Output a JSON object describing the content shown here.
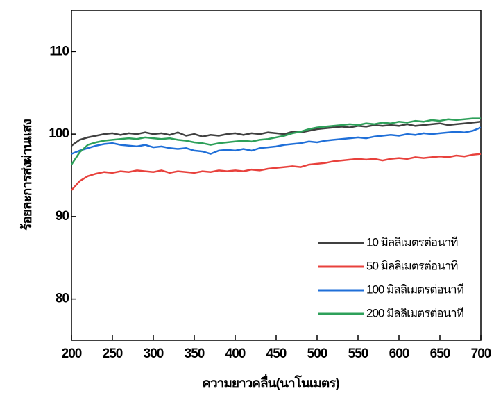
{
  "chart_data": {
    "type": "line",
    "x_label": "ความยาวคลื่น(นาโนเมตร)",
    "y_label": "ร้อยละการส่งผ่านแสง",
    "x": [
      200,
      210,
      220,
      230,
      240,
      250,
      260,
      270,
      280,
      290,
      300,
      310,
      320,
      330,
      340,
      350,
      360,
      370,
      380,
      390,
      400,
      410,
      420,
      430,
      440,
      450,
      460,
      470,
      480,
      490,
      500,
      510,
      520,
      530,
      540,
      550,
      560,
      570,
      580,
      590,
      600,
      610,
      620,
      630,
      640,
      650,
      660,
      670,
      680,
      690,
      700
    ],
    "series": [
      {
        "name": "10 มิลลิเมตรต่อนาที",
        "color": "#404040",
        "values": [
          98.6,
          99.3,
          99.6,
          99.8,
          100.0,
          100.1,
          99.9,
          100.1,
          100.0,
          100.2,
          100.0,
          100.1,
          99.9,
          100.2,
          99.8,
          100.0,
          99.7,
          99.9,
          99.8,
          100.0,
          100.1,
          99.9,
          100.1,
          100.0,
          100.2,
          100.1,
          100.0,
          100.3,
          100.2,
          100.4,
          100.6,
          100.7,
          100.8,
          100.9,
          100.8,
          101.0,
          100.9,
          101.1,
          101.0,
          101.1,
          101.0,
          101.2,
          101.0,
          101.1,
          101.2,
          101.3,
          101.1,
          101.2,
          101.3,
          101.4,
          101.5
        ]
      },
      {
        "name": "50 มิลลิเมตรต่อนาที",
        "color": "#e8413c",
        "values": [
          93.2,
          94.3,
          94.9,
          95.2,
          95.4,
          95.3,
          95.5,
          95.4,
          95.6,
          95.5,
          95.4,
          95.6,
          95.3,
          95.5,
          95.4,
          95.3,
          95.5,
          95.4,
          95.6,
          95.5,
          95.6,
          95.5,
          95.7,
          95.6,
          95.8,
          95.9,
          96.0,
          96.1,
          96.0,
          96.3,
          96.4,
          96.5,
          96.7,
          96.8,
          96.9,
          97.0,
          96.9,
          97.0,
          96.8,
          97.0,
          97.1,
          97.0,
          97.2,
          97.1,
          97.2,
          97.3,
          97.2,
          97.4,
          97.3,
          97.5,
          97.6
        ]
      },
      {
        "name": "100 มิลลิเมตรต่อนาที",
        "color": "#1f6fd8",
        "values": [
          97.6,
          98.0,
          98.3,
          98.6,
          98.8,
          98.9,
          98.7,
          98.6,
          98.5,
          98.7,
          98.4,
          98.5,
          98.3,
          98.2,
          98.3,
          98.0,
          97.9,
          97.6,
          98.0,
          98.1,
          98.0,
          98.2,
          98.0,
          98.3,
          98.4,
          98.5,
          98.7,
          98.8,
          98.9,
          99.1,
          99.0,
          99.2,
          99.3,
          99.4,
          99.5,
          99.6,
          99.5,
          99.7,
          99.8,
          99.9,
          99.8,
          100.0,
          99.9,
          100.1,
          100.0,
          100.1,
          100.2,
          100.3,
          100.2,
          100.4,
          100.8
        ]
      },
      {
        "name": "200 มิลลิเมตรต่อนาที",
        "color": "#2ea05a",
        "values": [
          96.3,
          97.8,
          98.7,
          99.0,
          99.2,
          99.3,
          99.4,
          99.5,
          99.4,
          99.6,
          99.5,
          99.4,
          99.5,
          99.3,
          99.2,
          99.0,
          98.9,
          98.7,
          98.9,
          99.0,
          99.1,
          99.2,
          99.1,
          99.3,
          99.4,
          99.6,
          99.8,
          100.1,
          100.3,
          100.6,
          100.8,
          100.9,
          101.0,
          101.1,
          101.2,
          101.1,
          101.3,
          101.2,
          101.4,
          101.3,
          101.5,
          101.4,
          101.6,
          101.5,
          101.7,
          101.6,
          101.8,
          101.7,
          101.8,
          101.9,
          101.9
        ]
      }
    ],
    "xlim": [
      200,
      700
    ],
    "xticks": [
      200,
      250,
      300,
      350,
      400,
      450,
      500,
      550,
      600,
      650,
      700
    ],
    "ylim": [
      75,
      115
    ],
    "yticks": [
      80,
      90,
      100,
      110
    ],
    "legend": "lower right"
  }
}
